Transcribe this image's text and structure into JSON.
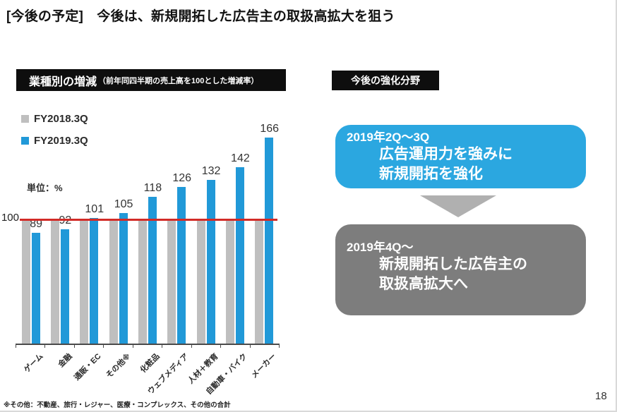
{
  "slide": {
    "title": "[今後の予定]　今後は、新規開拓した広告主の取扱高拡大を狙う",
    "page_number": "18"
  },
  "chart_section": {
    "header_title": "業種別の増減",
    "header_subtitle": "（前年同四半期の売上高を100とした増減率）",
    "unit_label": "単位：%",
    "baseline_label": "100",
    "footnote": "※その他：不動産、旅行・レジャー、医療・コンプレックス、その他の合計",
    "legend": [
      {
        "label": "FY2018.3Q",
        "color": "#bfbfbf"
      },
      {
        "label": "FY2019.3Q",
        "color": "#2199d8"
      }
    ]
  },
  "chart_data": {
    "type": "bar",
    "title": "業種別の増減（前年同四半期の売上高を100とした増減率）",
    "unit": "%",
    "categories": [
      "ゲーム",
      "金融",
      "通販・EC",
      "その他※",
      "化粧品",
      "ウェブメディア",
      "人材＋教育",
      "自動車・バイク",
      "メーカー"
    ],
    "series": [
      {
        "name": "FY2018.3Q",
        "color": "#bfbfbf",
        "values": [
          100,
          100,
          100,
          100,
          100,
          100,
          100,
          100,
          100
        ]
      },
      {
        "name": "FY2019.3Q",
        "color": "#2199d8",
        "values": [
          89,
          92,
          101,
          105,
          118,
          126,
          132,
          142,
          166
        ]
      }
    ],
    "value_labels": [
      89,
      92,
      101,
      105,
      118,
      126,
      132,
      142,
      166
    ],
    "reference_line": {
      "value": 100,
      "color": "#d22b27"
    },
    "ylim": [
      0,
      180
    ],
    "grid": false,
    "legend_position": "top-left"
  },
  "roadmap_section": {
    "header_title": "今後の強化分野",
    "arrow_color": "#b0b0b0",
    "steps": [
      {
        "period": "2019年2Q～3Q",
        "lines": [
          "広告運用力を強みに",
          "新規開拓を強化"
        ],
        "color": "#2ba7e0"
      },
      {
        "period": "2019年4Q～",
        "lines": [
          "新規開拓した広告主の",
          "取扱高拡大へ"
        ],
        "color": "#7d7d7d"
      }
    ]
  }
}
